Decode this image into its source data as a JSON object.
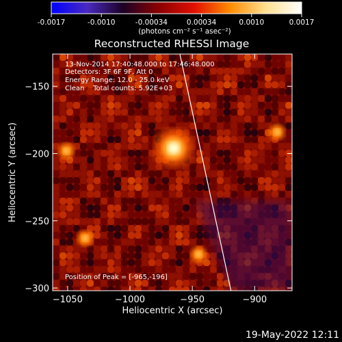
{
  "colorbar": {
    "ticks": [
      "-0.0017",
      "-0.0010",
      "-0.00034",
      "0.00034",
      "0.0010",
      "0.0017"
    ],
    "unit_label": "(photons cm⁻² s⁻¹ asec⁻²)",
    "colors": [
      "#0000ff",
      "#4a2ac0",
      "#1c0026",
      "#8a0000",
      "#e01000",
      "#ff8c00",
      "#ffe090",
      "#ffffff"
    ]
  },
  "info": {
    "time": "13-Nov-2014 17:40:48.000 to 17:46:48.000",
    "detectors": "Detectors: 3F 6F 9F, Att 0",
    "energy": "Energy Range: 12.0 - 25.0 keV",
    "clean": "Clean    Total counts: 5.92E+03",
    "peak": "Position of Peak = [-965,-196]"
  },
  "footer": {
    "timestamp": "19-May-2022 12:11"
  },
  "chart_data": {
    "type": "heatmap",
    "title": "Reconstructed RHESSI Image",
    "xlabel": "Heliocentric X (arcsec)",
    "ylabel": "Heliocentric Y (arcsec)",
    "xlim": [
      -1062,
      -870
    ],
    "ylim": [
      -302,
      -126
    ],
    "xticks": [
      {
        "value": -1050,
        "label": "−1050"
      },
      {
        "value": -1000,
        "label": "−1000"
      },
      {
        "value": -950,
        "label": "−950"
      },
      {
        "value": -900,
        "label": "−900"
      }
    ],
    "yticks": [
      {
        "value": -150,
        "label": "−150"
      },
      {
        "value": -200,
        "label": "−200"
      },
      {
        "value": -250,
        "label": "−250"
      },
      {
        "value": -300,
        "label": "−300"
      }
    ],
    "peak": [
      -965,
      -196
    ],
    "secondary_sources": [
      {
        "x": -1051,
        "y": -198
      },
      {
        "x": -882,
        "y": -184
      },
      {
        "x": -1036,
        "y": -263
      },
      {
        "x": -945,
        "y": -275
      }
    ],
    "limb_line": [
      [
        -960,
        -126
      ],
      [
        -919,
        -302
      ]
    ]
  }
}
